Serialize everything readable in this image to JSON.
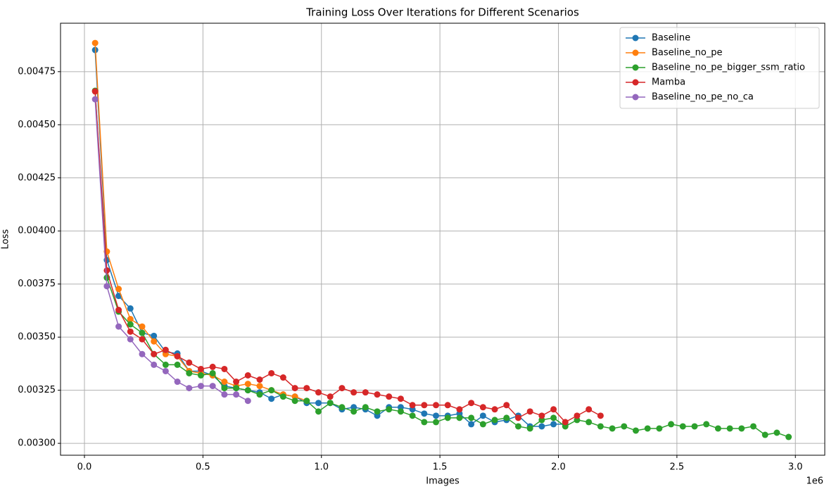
{
  "chart_data": {
    "type": "line",
    "title": "Training Loss Over Iterations for Different Scenarios",
    "x_label": "Images",
    "y_label": "Loss",
    "x_offset_label": "1e6",
    "x": [
      45000,
      94600,
      144200,
      193800,
      243400,
      293000,
      342600,
      392200,
      441800,
      491400,
      541000,
      590600,
      640200,
      689800,
      739400,
      789000,
      838600,
      888200,
      937800,
      987400,
      1037000,
      1086600,
      1136200,
      1185800,
      1235400,
      1285000,
      1334600,
      1384200,
      1433800,
      1483400,
      1533000,
      1582600,
      1632200,
      1681800,
      1731400,
      1781000,
      1830600,
      1880200,
      1929800,
      1979400,
      2029000,
      2078600,
      2128200,
      2177800,
      2227400,
      2277000,
      2326600,
      2376200,
      2425800,
      2475400,
      2525000,
      2574600,
      2624200,
      2673800,
      2723400,
      2773000,
      2822600,
      2872200,
      2921800,
      2971400
    ],
    "series": [
      {
        "name": "Baseline",
        "color": "#1f77b4",
        "values": [
          0.004852,
          0.003863,
          0.003694,
          0.003635,
          0.00352,
          0.003506,
          0.00343,
          0.003423,
          0.00334,
          0.00334,
          0.00332,
          0.00327,
          0.00326,
          0.00325,
          0.00324,
          0.00321,
          0.00323,
          0.00322,
          0.00319,
          0.00319,
          0.00319,
          0.00316,
          0.00317,
          0.00316,
          0.00313,
          0.00317,
          0.00317,
          0.00316,
          0.00314,
          0.00313,
          0.00313,
          0.00314,
          0.00309,
          0.00313,
          0.0031,
          0.00311,
          0.00313,
          0.00308,
          0.00308,
          0.00309,
          0.00309,
          null,
          null,
          null,
          null,
          null,
          null,
          null,
          null,
          null,
          null,
          null,
          null,
          null,
          null,
          null,
          null,
          null,
          null,
          null
        ]
      },
      {
        "name": "Baseline_no_pe",
        "color": "#ff7f0e",
        "values": [
          0.004885,
          0.003903,
          0.003727,
          0.003585,
          0.00355,
          0.00348,
          0.00342,
          0.00341,
          0.00334,
          0.00333,
          0.00332,
          0.00329,
          0.00327,
          0.00328,
          0.00327,
          0.00325,
          0.00323,
          0.00322,
          0.0032,
          null,
          null,
          null,
          null,
          null,
          null,
          null,
          null,
          null,
          null,
          null,
          null,
          null,
          null,
          null,
          null,
          null,
          null,
          null,
          null,
          null,
          null,
          null,
          null,
          null,
          null,
          null,
          null,
          null,
          null,
          null,
          null,
          null,
          null,
          null,
          null,
          null,
          null,
          null,
          null,
          null
        ]
      },
      {
        "name": "Baseline_no_pe_bigger_ssm_ratio",
        "color": "#2ca02c",
        "values": [
          0.00466,
          0.00378,
          0.00362,
          0.00356,
          0.00352,
          0.00342,
          0.00337,
          0.00337,
          0.00333,
          0.00332,
          0.00333,
          0.00326,
          0.00326,
          0.00325,
          0.00323,
          0.00325,
          0.00322,
          0.0032,
          0.0032,
          0.00315,
          0.00319,
          0.00317,
          0.00315,
          0.00317,
          0.00315,
          0.00316,
          0.00315,
          0.00313,
          0.0031,
          0.0031,
          0.00312,
          0.00312,
          0.00312,
          0.00309,
          0.00311,
          0.00312,
          0.00308,
          0.00307,
          0.00311,
          0.00312,
          0.00308,
          0.00311,
          0.0031,
          0.00308,
          0.00307,
          0.00308,
          0.00306,
          0.00307,
          0.00307,
          0.00309,
          0.00308,
          0.00308,
          0.00309,
          0.00307,
          0.00307,
          0.00307,
          0.00308,
          0.00304,
          0.00305,
          0.00303
        ]
      },
      {
        "name": "Mamba",
        "color": "#d62728",
        "values": [
          0.004657,
          0.003814,
          0.003628,
          0.003526,
          0.00349,
          0.00342,
          0.00344,
          0.00341,
          0.00338,
          0.00335,
          0.00336,
          0.00335,
          0.00329,
          0.00332,
          0.0033,
          0.00333,
          0.00331,
          0.00326,
          0.00326,
          0.00324,
          0.00322,
          0.00326,
          0.00324,
          0.00324,
          0.00323,
          0.00322,
          0.00321,
          0.00318,
          0.00318,
          0.00318,
          0.00318,
          0.00316,
          0.00319,
          0.00317,
          0.00316,
          0.00318,
          0.00312,
          0.00315,
          0.00313,
          0.00316,
          0.0031,
          0.00313,
          0.00316,
          0.00313,
          null,
          null,
          null,
          null,
          null,
          null,
          null,
          null,
          null,
          null,
          null,
          null,
          null,
          null,
          null,
          null
        ]
      },
      {
        "name": "Baseline_no_pe_no_ca",
        "color": "#9467bd",
        "values": [
          0.00462,
          0.00374,
          0.00355,
          0.00349,
          0.00342,
          0.00337,
          0.00334,
          0.00329,
          0.00326,
          0.00327,
          0.00327,
          0.00323,
          0.00323,
          0.0032,
          null,
          null,
          null,
          null,
          null,
          null,
          null,
          null,
          null,
          null,
          null,
          null,
          null,
          null,
          null,
          null,
          null,
          null,
          null,
          null,
          null,
          null,
          null,
          null,
          null,
          null,
          null,
          null,
          null,
          null,
          null,
          null,
          null,
          null,
          null,
          null,
          null,
          null,
          null,
          null,
          null,
          null,
          null,
          null,
          null,
          null
        ]
      }
    ],
    "xlim": [
      -101000,
      3124000
    ],
    "ylim": [
      0.002944,
      0.004978
    ],
    "xticks": [
      {
        "value": 0,
        "label": "0.0"
      },
      {
        "value": 500000,
        "label": "0.5"
      },
      {
        "value": 1000000,
        "label": "1.0"
      },
      {
        "value": 1500000,
        "label": "1.5"
      },
      {
        "value": 2000000,
        "label": "2.0"
      },
      {
        "value": 2500000,
        "label": "2.5"
      },
      {
        "value": 3000000,
        "label": "3.0"
      }
    ],
    "yticks": [
      {
        "value": 0.003,
        "label": "0.00300"
      },
      {
        "value": 0.00325,
        "label": "0.00325"
      },
      {
        "value": 0.0035,
        "label": "0.00350"
      },
      {
        "value": 0.00375,
        "label": "0.00375"
      },
      {
        "value": 0.004,
        "label": "0.00400"
      },
      {
        "value": 0.00425,
        "label": "0.00425"
      },
      {
        "value": 0.0045,
        "label": "0.00450"
      },
      {
        "value": 0.00475,
        "label": "0.00475"
      }
    ],
    "grid": true,
    "legend": "upper right"
  }
}
